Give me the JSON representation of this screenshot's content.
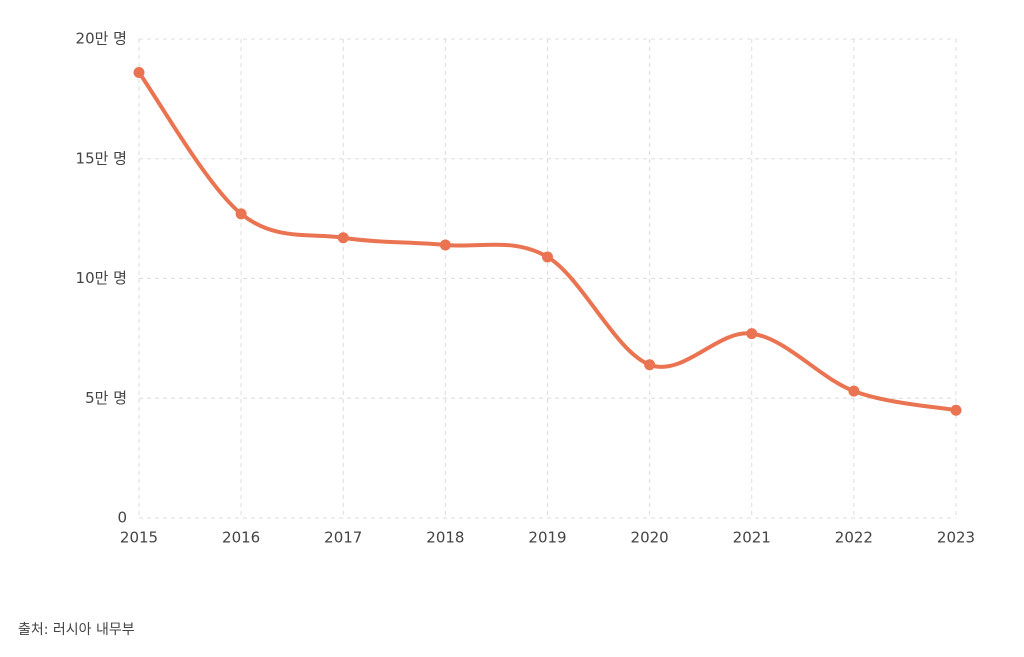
{
  "chart_data": {
    "type": "line",
    "categories": [
      "2015",
      "2016",
      "2017",
      "2018",
      "2019",
      "2020",
      "2021",
      "2022",
      "2023"
    ],
    "values": [
      186000,
      127000,
      117000,
      114000,
      109000,
      64000,
      77000,
      53000,
      45000
    ],
    "color": "#ea7452",
    "ylim": [
      0,
      200000
    ],
    "yticks": [
      0,
      {
        "value": 50000,
        "label": "5만 명"
      },
      {
        "value": 100000,
        "label": "10만 명"
      },
      {
        "value": 150000,
        "label": "15만 명"
      },
      {
        "value": 200000,
        "label": "20만 명"
      }
    ],
    "grid": true
  },
  "source": "출처: 러시아 내무부"
}
